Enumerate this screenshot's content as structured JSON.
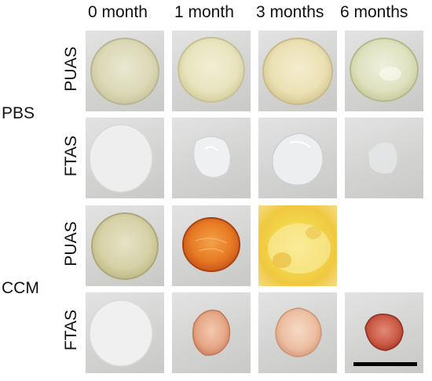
{
  "columns": [
    "0 month",
    "1 month",
    "3 months",
    "6 months"
  ],
  "groups": [
    {
      "label": "PBS",
      "rows": [
        "PUAS",
        "FTAS"
      ]
    },
    {
      "label": "CCM",
      "rows": [
        "PUAS",
        "FTAS"
      ]
    }
  ],
  "tiles": [
    {
      "row": 0,
      "col": 0,
      "sample": "clear-yellowish disc"
    },
    {
      "row": 0,
      "col": 1,
      "sample": "clear-yellowish disc"
    },
    {
      "row": 0,
      "col": 2,
      "sample": "clear-yellowish disc"
    },
    {
      "row": 0,
      "col": 3,
      "sample": "clear-yellowish disc"
    },
    {
      "row": 1,
      "col": 0,
      "sample": "translucent white disc"
    },
    {
      "row": 1,
      "col": 1,
      "sample": "translucent fragment"
    },
    {
      "row": 1,
      "col": 2,
      "sample": "translucent fragment"
    },
    {
      "row": 1,
      "col": 3,
      "sample": "faint translucent fragment"
    },
    {
      "row": 2,
      "col": 0,
      "sample": "clear-yellowish disc"
    },
    {
      "row": 2,
      "col": 1,
      "sample": "orange disc"
    },
    {
      "row": 2,
      "col": 2,
      "sample": "yellow diffuse residue"
    },
    {
      "row": 2,
      "col": 3,
      "sample": "none"
    },
    {
      "row": 3,
      "col": 0,
      "sample": "translucent white disc"
    },
    {
      "row": 3,
      "col": 1,
      "sample": "pinkish fragment"
    },
    {
      "row": 3,
      "col": 2,
      "sample": "pinkish fragment"
    },
    {
      "row": 3,
      "col": 3,
      "sample": "red fragment"
    }
  ],
  "colors": {
    "background": "#ffffff",
    "tile_bg": "#d5d6d4",
    "scale_bar": "#000000"
  }
}
